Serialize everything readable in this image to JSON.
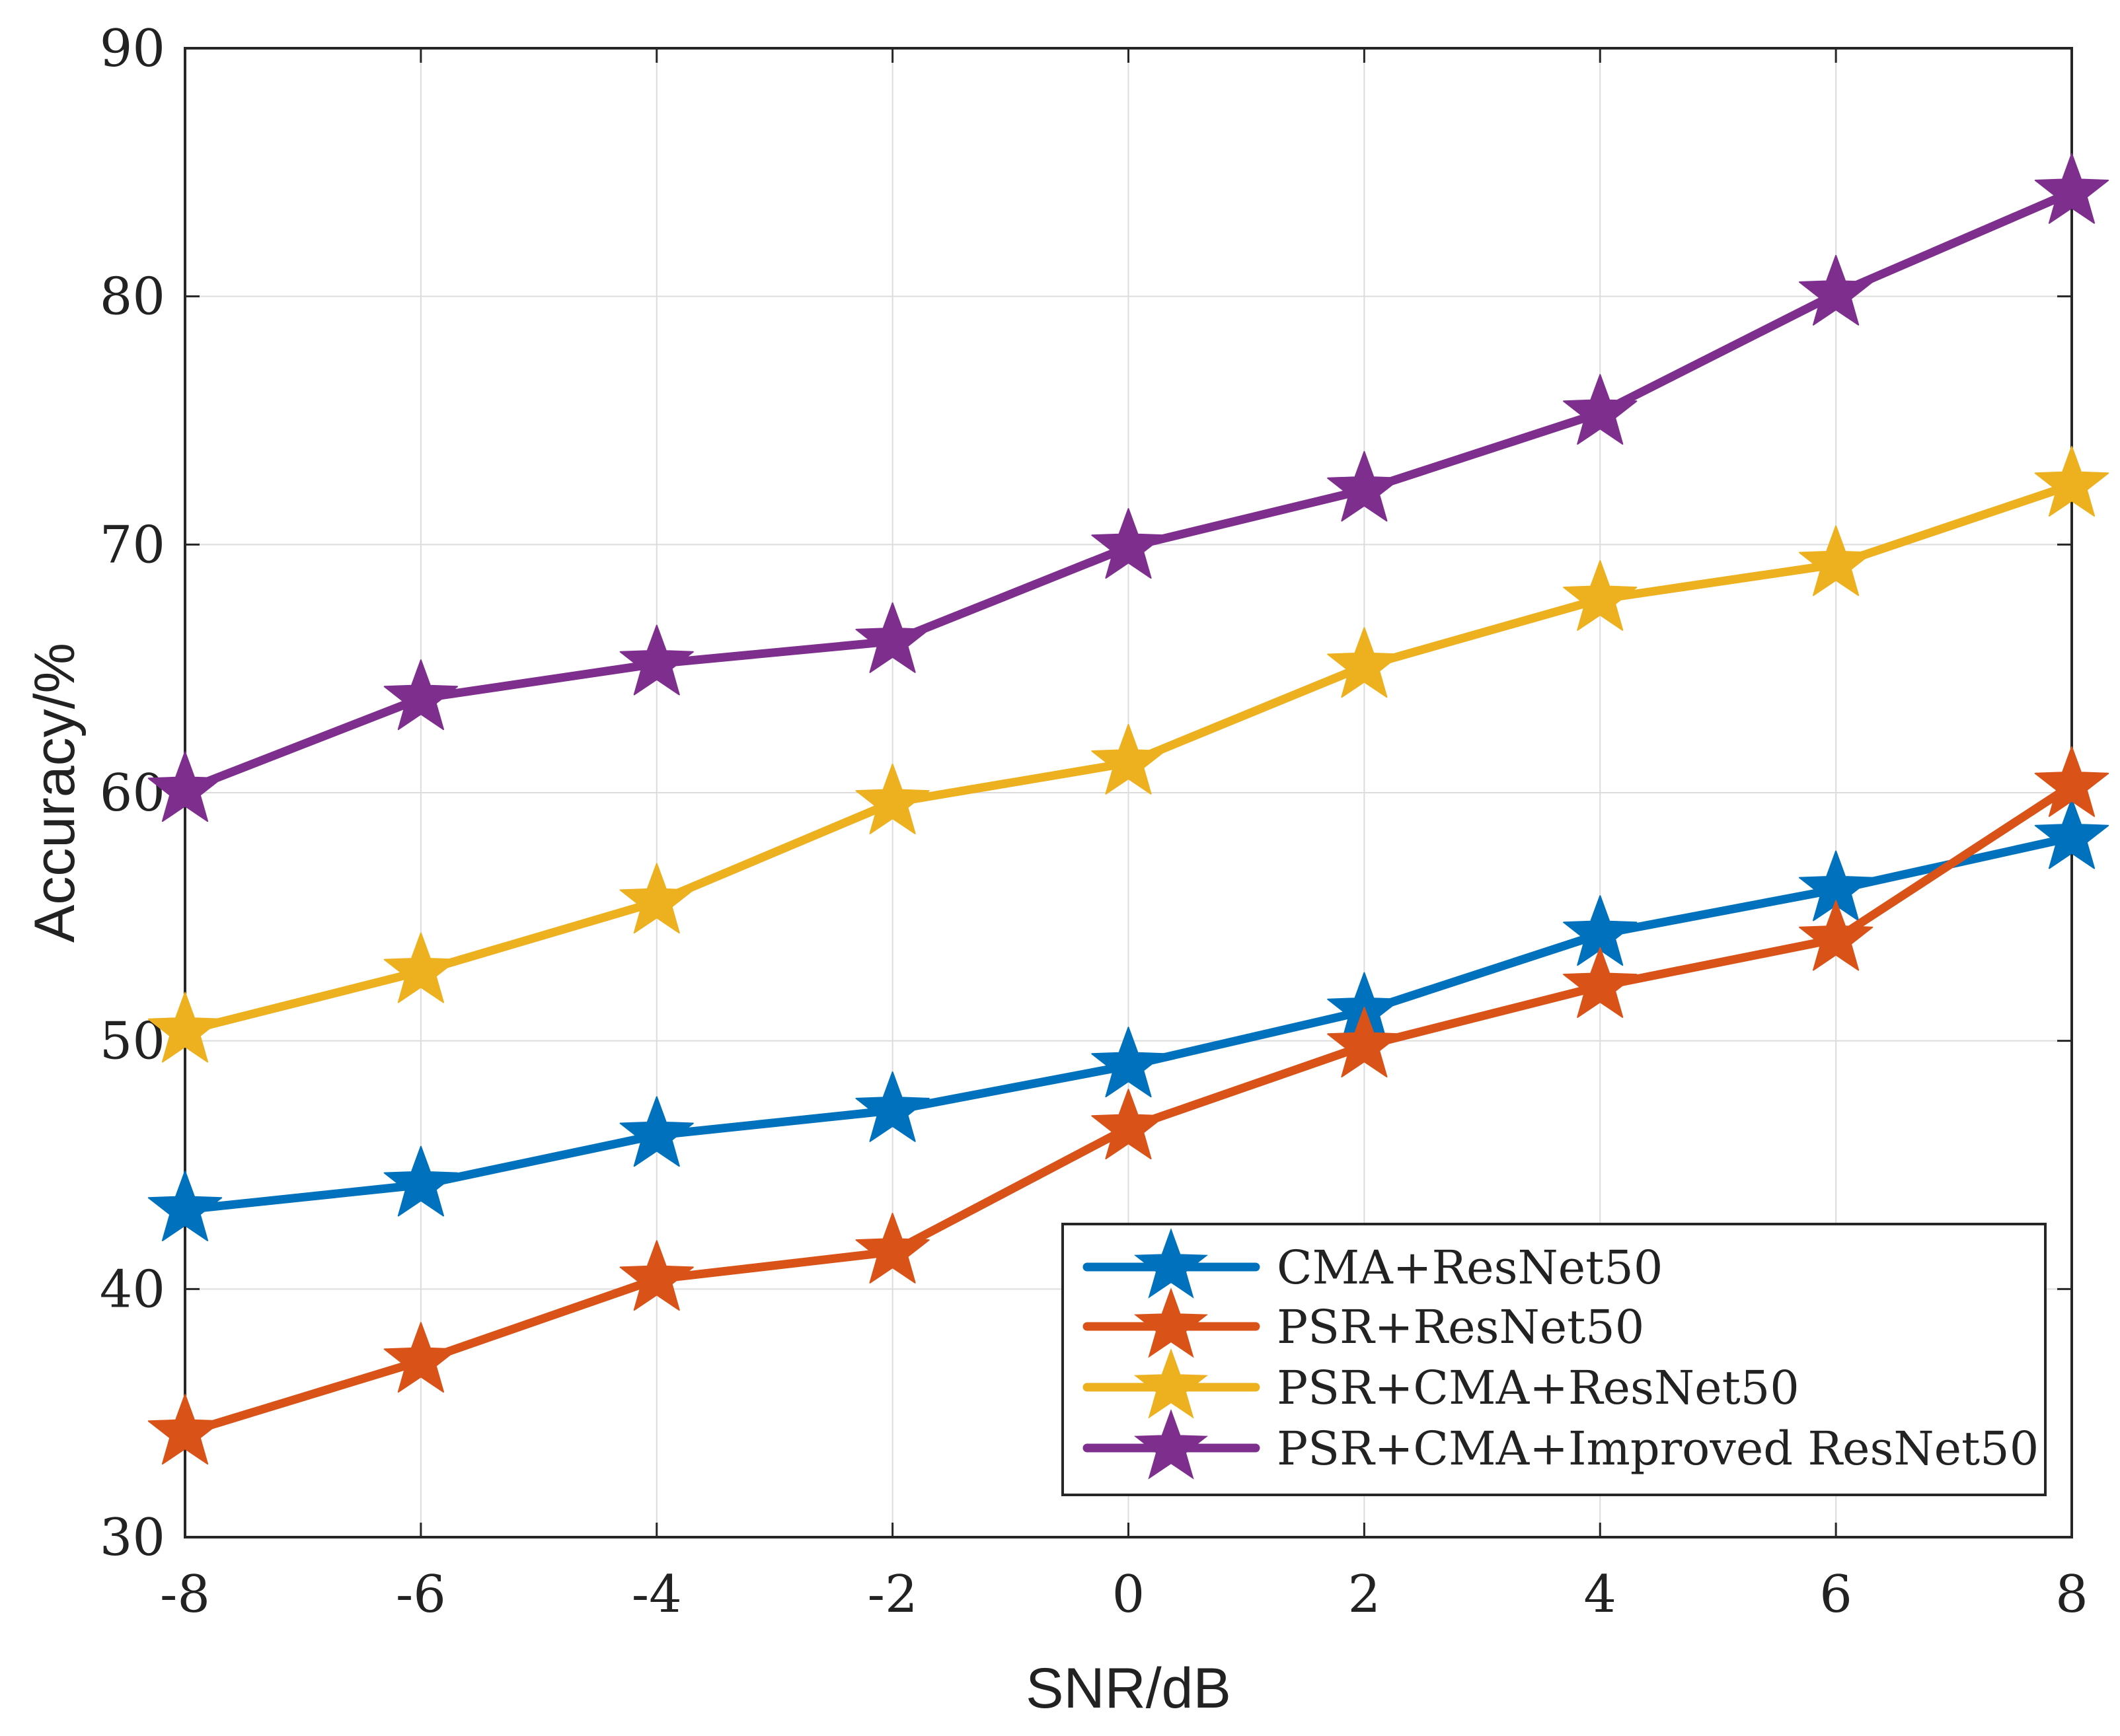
{
  "chart_data": {
    "type": "line",
    "title": "",
    "xlabel": "SNR/dB",
    "ylabel": "Accuracy/%",
    "x": [
      -8,
      -6,
      -4,
      -2,
      0,
      2,
      4,
      6,
      8
    ],
    "x_tick_labels": [
      "-8",
      "-6",
      "-4",
      "-2",
      "0",
      "2",
      "4",
      "6",
      "8"
    ],
    "y_tick_labels": [
      "30",
      "40",
      "50",
      "60",
      "70",
      "80",
      "90"
    ],
    "xlim": [
      -8,
      8
    ],
    "ylim": [
      30,
      90
    ],
    "grid": true,
    "legend_position": "bottom-right",
    "marker": "star",
    "series": [
      {
        "name": "CMA+ResNet50",
        "color": "#0072BD",
        "values": [
          43.2,
          44.2,
          46.2,
          47.2,
          49.0,
          51.2,
          54.3,
          56.1,
          58.2
        ]
      },
      {
        "name": "PSR+ResNet50",
        "color": "#D95319",
        "values": [
          34.2,
          37.1,
          40.4,
          41.5,
          46.5,
          49.8,
          52.2,
          54.1,
          60.3
        ]
      },
      {
        "name": "PSR+CMA+ResNet50",
        "color": "#EDB120",
        "values": [
          50.4,
          52.8,
          55.6,
          59.6,
          61.2,
          65.1,
          67.8,
          69.2,
          72.4
        ]
      },
      {
        "name": "PSR+CMA+Improved ResNet50",
        "color": "#7E2F8E",
        "values": [
          60.1,
          63.8,
          65.2,
          66.1,
          69.9,
          72.2,
          75.3,
          80.1,
          84.2
        ]
      }
    ]
  }
}
